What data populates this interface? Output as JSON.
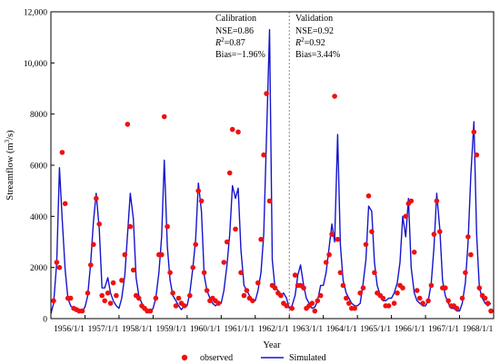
{
  "chart_data": {
    "type": "line",
    "xlabel": "Year",
    "ylabel": "Streamflow (m³/s)",
    "ylim": [
      0,
      12000
    ],
    "yticks": [
      0,
      2000,
      4000,
      6000,
      8000,
      10000,
      12000
    ],
    "ytick_labels": [
      "0",
      "2000",
      "4000",
      "6000",
      "8000",
      "10,000",
      "12,000"
    ],
    "xlim": [
      1956.0,
      1969.0
    ],
    "xticks": [
      1956,
      1957,
      1958,
      1959,
      1960,
      1961,
      1962,
      1963,
      1964,
      1965,
      1966,
      1967,
      1968
    ],
    "xtick_labels": [
      "1956/1/1",
      "1957/1/1",
      "1958/1/1",
      "1959/1/1",
      "1960/1/1",
      "1961/1/1",
      "1962/1/1",
      "1963/1/1",
      "1964/1/1",
      "1965/1/1",
      "1966/1/1",
      "1967/1/1",
      "1968/1/1"
    ],
    "divider_x": 1963.0,
    "annotations": {
      "calibration": {
        "title": "Calibration",
        "nse": "NSE=0.86",
        "r2_symbol": "R",
        "r2_value": "=0.87",
        "bias": "Bias=−1.96%"
      },
      "validation": {
        "title": "Validation",
        "nse": "NSE=0.92",
        "r2_symbol": "R",
        "r2_value": "=0.92",
        "bias": "Bias=3.44%"
      }
    },
    "legend": {
      "placement": "bottom-center",
      "observed": "observed",
      "simulated": "Simulated"
    },
    "colors": {
      "observed": "#ee1111",
      "simulated": "#1515cc",
      "divider": "#888888"
    },
    "series": [
      {
        "name": "Simulated",
        "x": [
          1956.0,
          1956.08,
          1956.17,
          1956.25,
          1956.33,
          1956.42,
          1956.5,
          1956.58,
          1956.67,
          1956.75,
          1956.83,
          1956.92,
          1957.0,
          1957.08,
          1957.17,
          1957.25,
          1957.33,
          1957.42,
          1957.5,
          1957.58,
          1957.67,
          1957.75,
          1957.83,
          1957.92,
          1958.0,
          1958.08,
          1958.17,
          1958.25,
          1958.33,
          1958.42,
          1958.5,
          1958.58,
          1958.67,
          1958.75,
          1958.83,
          1958.92,
          1959.0,
          1959.08,
          1959.17,
          1959.25,
          1959.33,
          1959.42,
          1959.5,
          1959.58,
          1959.67,
          1959.75,
          1959.83,
          1959.92,
          1960.0,
          1960.08,
          1960.17,
          1960.25,
          1960.33,
          1960.42,
          1960.5,
          1960.58,
          1960.67,
          1960.75,
          1960.83,
          1960.92,
          1961.0,
          1961.08,
          1961.17,
          1961.25,
          1961.33,
          1961.42,
          1961.5,
          1961.58,
          1961.67,
          1961.75,
          1961.83,
          1961.92,
          1962.0,
          1962.08,
          1962.17,
          1962.25,
          1962.33,
          1962.42,
          1962.5,
          1962.58,
          1962.67,
          1962.75,
          1962.83,
          1962.92,
          1963.0,
          1963.08,
          1963.17,
          1963.25,
          1963.33,
          1963.42,
          1963.5,
          1963.58,
          1963.67,
          1963.75,
          1963.83,
          1963.92,
          1964.0,
          1964.08,
          1964.17,
          1964.25,
          1964.33,
          1964.42,
          1964.5,
          1964.58,
          1964.67,
          1964.75,
          1964.83,
          1964.92,
          1965.0,
          1965.08,
          1965.17,
          1965.25,
          1965.33,
          1965.42,
          1965.5,
          1965.58,
          1965.67,
          1965.75,
          1965.83,
          1965.92,
          1966.0,
          1966.08,
          1966.17,
          1966.25,
          1966.33,
          1966.42,
          1966.5,
          1966.58,
          1966.67,
          1966.75,
          1966.83,
          1966.92,
          1967.0,
          1967.08,
          1967.17,
          1967.25,
          1967.33,
          1967.42,
          1967.5,
          1967.58,
          1967.67,
          1967.75,
          1967.83,
          1967.92,
          1968.0,
          1968.08,
          1968.17,
          1968.25,
          1968.33,
          1968.42,
          1968.5,
          1968.58,
          1968.67,
          1968.75,
          1968.83,
          1968.92
        ],
        "y": [
          200,
          600,
          2200,
          5900,
          3900,
          1900,
          800,
          500,
          400,
          300,
          250,
          300,
          450,
          900,
          2200,
          3800,
          4900,
          3500,
          1200,
          1200,
          1600,
          1000,
          700,
          500,
          400,
          800,
          1700,
          3300,
          4900,
          3900,
          1600,
          900,
          600,
          400,
          300,
          250,
          400,
          800,
          1800,
          3200,
          6200,
          2800,
          1500,
          900,
          700,
          500,
          350,
          500,
          500,
          1000,
          2000,
          3100,
          5300,
          4200,
          1700,
          1100,
          800,
          600,
          500,
          600,
          600,
          1100,
          2100,
          3300,
          5200,
          4700,
          5100,
          2700,
          1300,
          1100,
          900,
          700,
          700,
          1100,
          1800,
          3300,
          7000,
          11300,
          2300,
          1200,
          1100,
          900,
          1000,
          800,
          400,
          500,
          900,
          1700,
          2100,
          1300,
          800,
          600,
          400,
          450,
          700,
          1300,
          1300,
          1800,
          2800,
          3700,
          3000,
          7200,
          2900,
          1500,
          1000,
          800,
          600,
          500,
          500,
          600,
          1400,
          2300,
          4400,
          4200,
          2200,
          1300,
          900,
          700,
          700,
          800,
          800,
          1000,
          1400,
          2200,
          4000,
          3200,
          4700,
          2000,
          1000,
          700,
          600,
          500,
          500,
          700,
          1400,
          2800,
          4900,
          3500,
          1500,
          900,
          600,
          400,
          400,
          300,
          300,
          600,
          1400,
          3000,
          5600,
          7700,
          3300,
          1200,
          800,
          600,
          500,
          600
        ]
      },
      {
        "name": "observed",
        "x": [
          1956.08,
          1956.17,
          1956.25,
          1956.33,
          1956.42,
          1956.5,
          1956.58,
          1956.67,
          1956.75,
          1956.83,
          1956.92,
          1957.08,
          1957.17,
          1957.25,
          1957.33,
          1957.42,
          1957.5,
          1957.58,
          1957.67,
          1957.75,
          1957.83,
          1957.92,
          1958.08,
          1958.17,
          1958.25,
          1958.33,
          1958.42,
          1958.5,
          1958.58,
          1958.67,
          1958.75,
          1958.83,
          1958.92,
          1959.08,
          1959.17,
          1959.25,
          1959.33,
          1959.42,
          1959.5,
          1959.58,
          1959.67,
          1959.75,
          1959.83,
          1959.92,
          1960.08,
          1960.17,
          1960.25,
          1960.33,
          1960.42,
          1960.5,
          1960.58,
          1960.67,
          1960.75,
          1960.83,
          1960.92,
          1961.08,
          1961.17,
          1961.25,
          1961.33,
          1961.42,
          1961.5,
          1961.58,
          1961.67,
          1961.75,
          1961.83,
          1961.92,
          1962.08,
          1962.17,
          1962.25,
          1962.33,
          1962.42,
          1962.5,
          1962.58,
          1962.67,
          1962.75,
          1962.83,
          1962.92,
          1963.08,
          1963.17,
          1963.25,
          1963.33,
          1963.42,
          1963.5,
          1963.58,
          1963.67,
          1963.75,
          1963.83,
          1963.92,
          1964.08,
          1964.17,
          1964.25,
          1964.33,
          1964.42,
          1964.5,
          1964.58,
          1964.67,
          1964.75,
          1964.83,
          1964.92,
          1965.08,
          1965.17,
          1965.25,
          1965.33,
          1965.42,
          1965.5,
          1965.58,
          1965.67,
          1965.75,
          1965.83,
          1965.92,
          1966.08,
          1966.17,
          1966.25,
          1966.33,
          1966.42,
          1966.5,
          1966.58,
          1966.67,
          1966.75,
          1966.83,
          1966.92,
          1967.08,
          1967.17,
          1967.25,
          1967.33,
          1967.42,
          1967.5,
          1967.58,
          1967.67,
          1967.75,
          1967.83,
          1967.92,
          1968.08,
          1968.17,
          1968.25,
          1968.33,
          1968.42,
          1968.5,
          1968.58,
          1968.67,
          1968.75,
          1968.83,
          1968.92
        ],
        "y": [
          700,
          2200,
          2000,
          6500,
          4500,
          800,
          800,
          400,
          350,
          300,
          300,
          1000,
          2100,
          2900,
          4700,
          3700,
          900,
          700,
          1000,
          600,
          1400,
          900,
          1500,
          2500,
          7600,
          3600,
          1900,
          900,
          800,
          500,
          400,
          300,
          300,
          800,
          2500,
          2500,
          7900,
          3600,
          1800,
          1000,
          500,
          800,
          600,
          500,
          900,
          2000,
          2900,
          5000,
          4600,
          1800,
          1100,
          700,
          800,
          700,
          600,
          2200,
          3000,
          5700,
          7400,
          3500,
          7300,
          1800,
          900,
          1100,
          800,
          700,
          1400,
          3100,
          6400,
          8800,
          4600,
          1300,
          1200,
          1000,
          900,
          600,
          500,
          400,
          1700,
          1300,
          1300,
          1200,
          400,
          500,
          600,
          300,
          700,
          900,
          2200,
          2500,
          3300,
          8700,
          3100,
          1800,
          1300,
          800,
          600,
          400,
          400,
          1000,
          1200,
          2900,
          4800,
          3400,
          1800,
          1000,
          900,
          800,
          500,
          500,
          600,
          1000,
          1300,
          1200,
          4000,
          4500,
          4600,
          2600,
          1100,
          800,
          600,
          700,
          1300,
          3300,
          4600,
          3400,
          1200,
          1200,
          700,
          500,
          500,
          400,
          800,
          1800,
          3200,
          2500,
          7300,
          6400,
          1200,
          900,
          800,
          600,
          300
        ]
      }
    ]
  }
}
